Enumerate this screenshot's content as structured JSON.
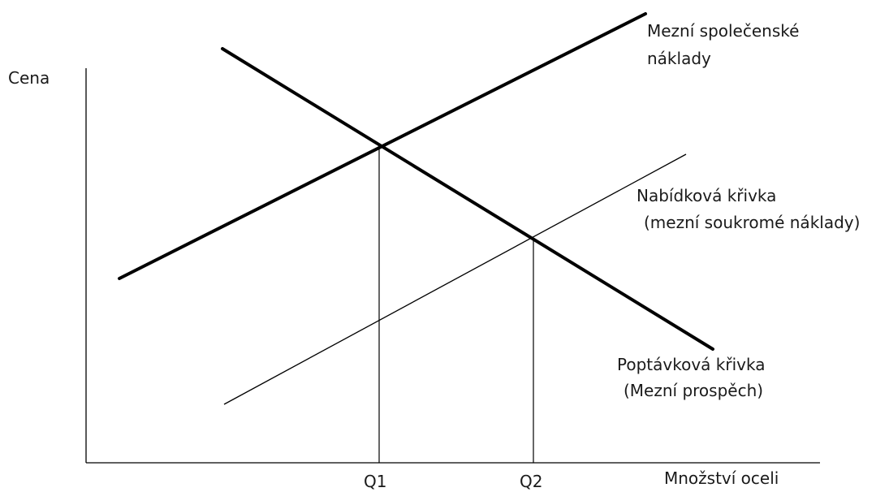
{
  "axes": {
    "y_label": "Cena",
    "x_label": "Množství oceli"
  },
  "quantities": {
    "q1": "Q1",
    "q2": "Q2"
  },
  "curves": {
    "social_cost": {
      "label_line1": "Mezní společenské",
      "label_line2": "náklady"
    },
    "supply": {
      "label_line1": "Nabídková křivka",
      "label_line2": "(mezní soukromé náklady)"
    },
    "demand": {
      "label_line1": "Poptávková křivka",
      "label_line2": "(Mezní prospěch)"
    }
  },
  "colors": {
    "line": "#000000",
    "text": "#1a1a1a",
    "background": "#ffffff"
  }
}
